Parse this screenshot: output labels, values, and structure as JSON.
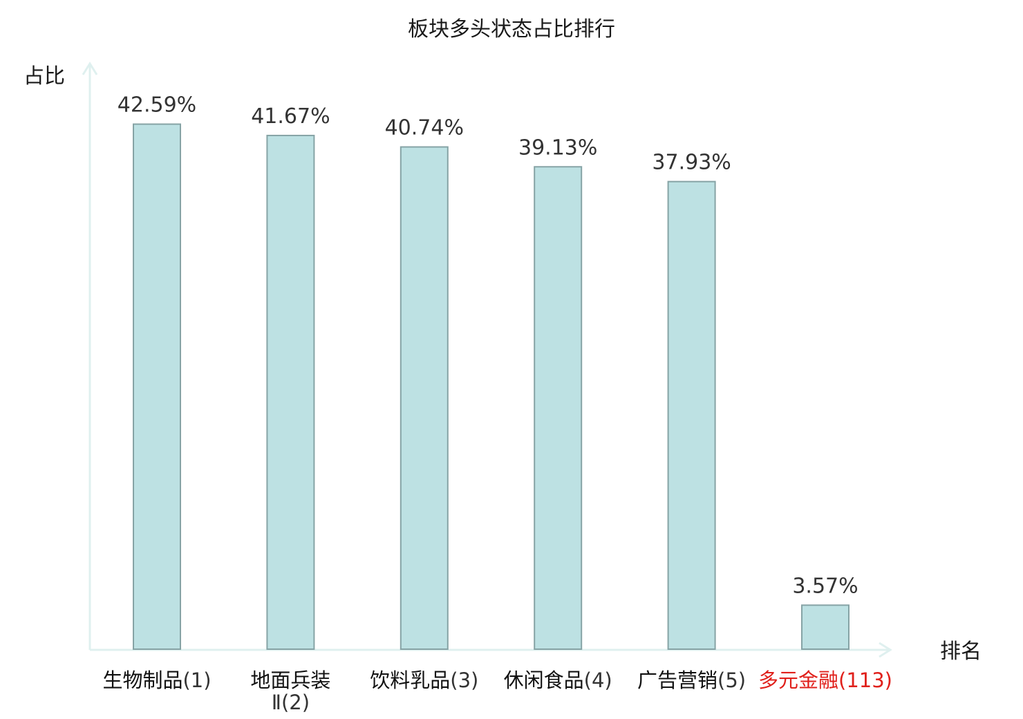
{
  "chart_data": {
    "type": "bar",
    "title": "板块多头状态占比排行",
    "ylabel": "占比",
    "xlabel": "排名",
    "ylim": [
      0,
      47.5
    ],
    "grid": false,
    "categories": [
      {
        "name": "生物制品",
        "rank": "(1)",
        "highlight": false
      },
      {
        "name": "地面兵装",
        "name2": "Ⅱ(2)",
        "rank": "",
        "highlight": false
      },
      {
        "name": "饮料乳品",
        "rank": "(3)",
        "highlight": false
      },
      {
        "name": "休闲食品",
        "rank": "(4)",
        "highlight": false
      },
      {
        "name": "广告营销",
        "rank": "(5)",
        "highlight": false
      },
      {
        "name": "多元金融",
        "rank": "(113)",
        "highlight": true
      }
    ],
    "values": [
      42.59,
      41.67,
      40.74,
      39.13,
      37.93,
      3.57
    ],
    "value_labels": [
      "42.59%",
      "41.67%",
      "40.74%",
      "39.13%",
      "37.93%",
      "3.57%"
    ],
    "colors": {
      "bar_fill": "#bde1e3",
      "bar_stroke": "#86a3a5",
      "axis": "#dff0ef",
      "name_text": "#111111",
      "rank_text": "#333333",
      "highlight": "#e0201b"
    }
  }
}
